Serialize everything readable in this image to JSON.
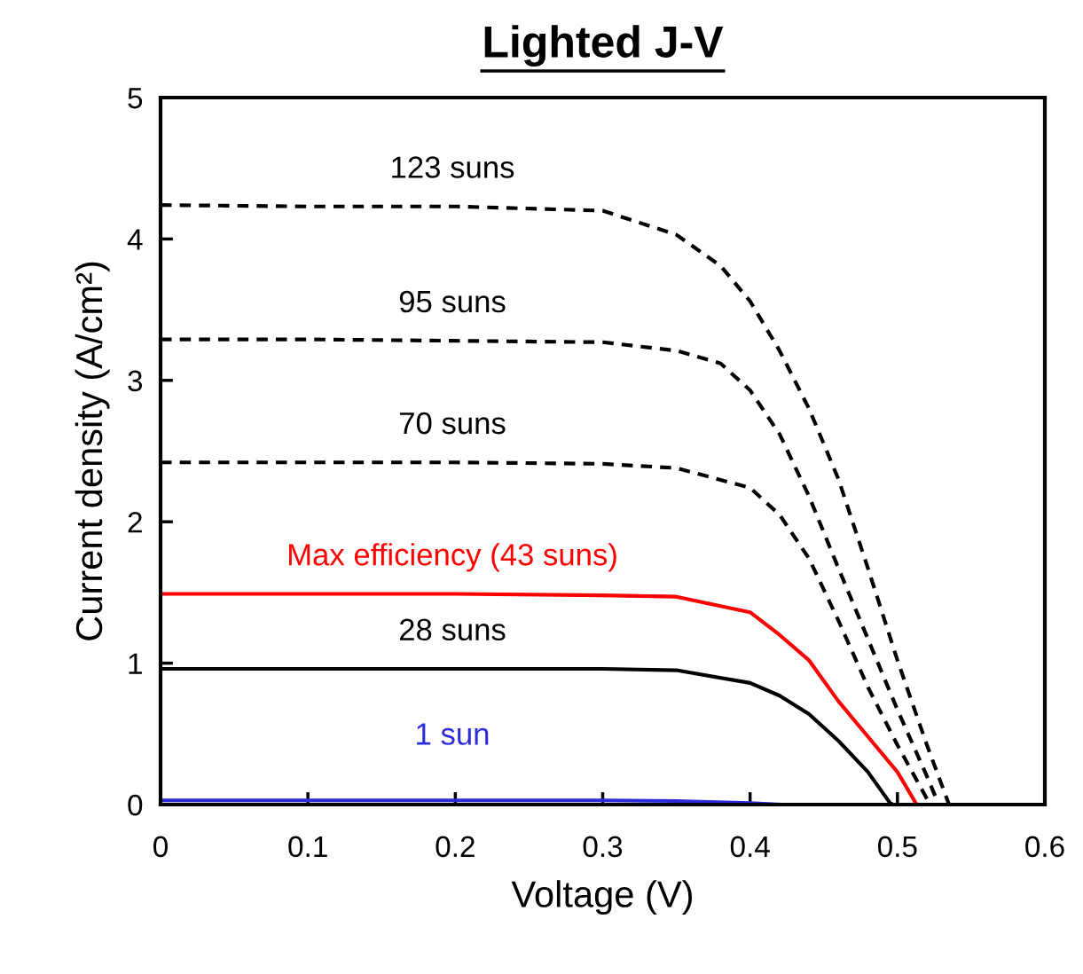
{
  "chart_data": {
    "type": "line",
    "title": "Lighted J-V",
    "xlabel": "Voltage (V)",
    "ylabel": "Current density (A/cm²)",
    "xlim": [
      0,
      0.6
    ],
    "xticks": [
      0,
      0.1,
      0.2,
      0.3,
      0.4,
      0.5,
      0.6
    ],
    "ylim": [
      0,
      5
    ],
    "yticks": [
      0,
      1,
      2,
      3,
      4,
      5
    ],
    "grid": false,
    "legend": false,
    "series": [
      {
        "name": "123 suns",
        "color": "#000000",
        "line_style": "dashed",
        "x": [
          0,
          0.1,
          0.2,
          0.3,
          0.35,
          0.38,
          0.4,
          0.42,
          0.44,
          0.46,
          0.48,
          0.5,
          0.52,
          0.535
        ],
        "values": [
          4.24,
          4.23,
          4.23,
          4.2,
          4.03,
          3.81,
          3.56,
          3.21,
          2.8,
          2.3,
          1.67,
          1.02,
          0.42,
          0
        ]
      },
      {
        "name": "95 suns",
        "color": "#000000",
        "line_style": "dashed",
        "x": [
          0,
          0.1,
          0.2,
          0.3,
          0.35,
          0.38,
          0.4,
          0.42,
          0.44,
          0.46,
          0.48,
          0.5,
          0.52,
          0.528
        ],
        "values": [
          3.29,
          3.29,
          3.28,
          3.27,
          3.21,
          3.12,
          2.93,
          2.62,
          2.18,
          1.67,
          1.17,
          0.67,
          0.2,
          0
        ]
      },
      {
        "name": "70 suns",
        "color": "#000000",
        "line_style": "dashed",
        "x": [
          0,
          0.1,
          0.2,
          0.3,
          0.35,
          0.4,
          0.42,
          0.44,
          0.46,
          0.48,
          0.5,
          0.52,
          0.523
        ],
        "values": [
          2.42,
          2.42,
          2.42,
          2.41,
          2.38,
          2.24,
          2.05,
          1.74,
          1.3,
          0.83,
          0.42,
          0.04,
          0
        ]
      },
      {
        "name": "Max efficiency (43 suns)",
        "color": "#ff0000",
        "line_style": "solid",
        "x": [
          0,
          0.1,
          0.2,
          0.3,
          0.35,
          0.4,
          0.42,
          0.44,
          0.46,
          0.48,
          0.5,
          0.513
        ],
        "values": [
          1.49,
          1.49,
          1.49,
          1.48,
          1.47,
          1.36,
          1.2,
          1.02,
          0.73,
          0.48,
          0.23,
          0
        ]
      },
      {
        "name": "28 suns",
        "color": "#000000",
        "line_style": "solid",
        "x": [
          0,
          0.1,
          0.2,
          0.3,
          0.35,
          0.4,
          0.42,
          0.44,
          0.46,
          0.48,
          0.495,
          0.497
        ],
        "values": [
          0.96,
          0.96,
          0.96,
          0.96,
          0.95,
          0.86,
          0.77,
          0.64,
          0.45,
          0.23,
          0.01,
          0
        ]
      },
      {
        "name": "1 sun",
        "color": "#2b2bd9",
        "line_style": "solid",
        "x": [
          0,
          0.1,
          0.2,
          0.3,
          0.35,
          0.4,
          0.42
        ],
        "values": [
          0.03,
          0.03,
          0.03,
          0.03,
          0.025,
          0.01,
          0
        ]
      }
    ]
  }
}
